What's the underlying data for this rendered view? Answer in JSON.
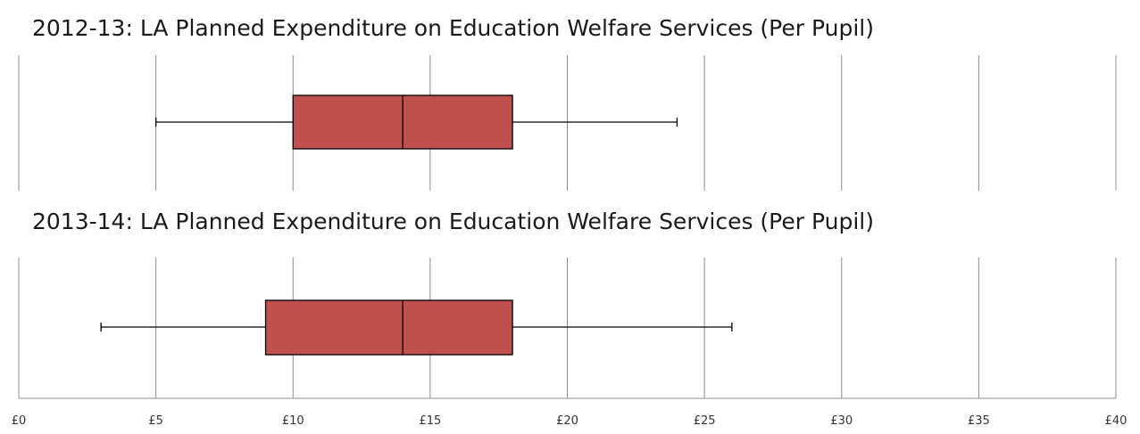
{
  "chart_data": {
    "type": "boxplot",
    "xlim": [
      0,
      40
    ],
    "x_ticks": [
      0,
      5,
      10,
      15,
      20,
      25,
      30,
      35,
      40
    ],
    "x_tick_labels": [
      "£0",
      "£5",
      "£10",
      "£15",
      "£20",
      "£25",
      "£30",
      "£35",
      "£40"
    ],
    "grid": true,
    "colors": {
      "box_fill": "#c0504d",
      "grid": "#8c8c8c",
      "line": "#000000"
    },
    "panels": [
      {
        "title": "2012-13: LA Planned Expenditure on Education Welfare Services (Per Pupil)",
        "min": 5,
        "q1": 10,
        "median": 14,
        "q3": 18,
        "max": 24
      },
      {
        "title": "2013-14: LA Planned Expenditure on Education Welfare Services (Per Pupil)",
        "min": 3,
        "q1": 9,
        "median": 14,
        "q3": 18,
        "max": 26
      }
    ]
  }
}
